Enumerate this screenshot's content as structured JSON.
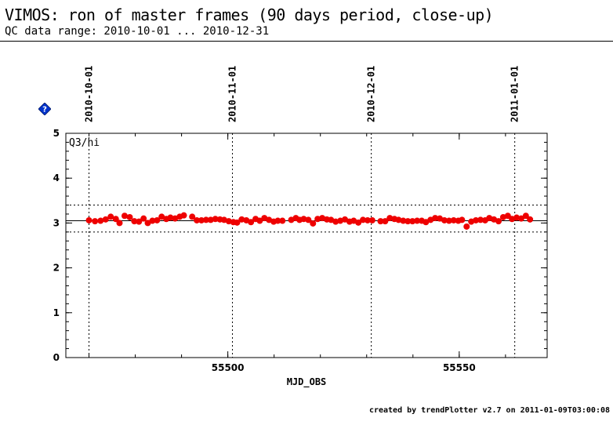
{
  "header": {
    "title": "VIMOS: ron of master frames (90 days period, close-up)",
    "subtitle": "QC data range: 2010-10-01 ... 2010-12-31"
  },
  "footer": "created by trendPlotter v2.7 on 2011-01-09T03:00:08",
  "icons": {
    "help": "help-diamond-icon"
  },
  "colors": {
    "points": "#ee0000",
    "help": "#0033cc"
  },
  "chart_data": {
    "type": "scatter",
    "xlabel": "MJD_OBS",
    "ylabel": "",
    "panel_label": "Q3/hi",
    "xlim": [
      55465,
      55569
    ],
    "ylim": [
      0,
      5
    ],
    "x_ticks": [
      55500,
      55550
    ],
    "y_ticks": [
      0,
      1,
      2,
      3,
      4,
      5
    ],
    "top_date_labels": [
      {
        "label": "2010-10-01",
        "x": 55470
      },
      {
        "label": "2010-11-01",
        "x": 55501
      },
      {
        "label": "2010-12-01",
        "x": 55531
      },
      {
        "label": "2011-01-01",
        "x": 55562
      }
    ],
    "reference_lines": {
      "median": 3.05,
      "lower": 2.8,
      "upper": 3.4
    },
    "series": [
      {
        "points": [
          [
            55470.0,
            3.06
          ],
          [
            55471.3,
            3.04
          ],
          [
            55472.5,
            3.05
          ],
          [
            55473.6,
            3.08
          ],
          [
            55474.7,
            3.14
          ],
          [
            55475.8,
            3.09
          ],
          [
            55476.6,
            3.0
          ],
          [
            55477.7,
            3.16
          ],
          [
            55478.8,
            3.13
          ],
          [
            55479.8,
            3.04
          ],
          [
            55480.8,
            3.03
          ],
          [
            55481.8,
            3.1
          ],
          [
            55482.7,
            3.0
          ],
          [
            55483.7,
            3.05
          ],
          [
            55484.7,
            3.06
          ],
          [
            55485.7,
            3.14
          ],
          [
            55486.7,
            3.09
          ],
          [
            55487.6,
            3.12
          ],
          [
            55488.6,
            3.1
          ],
          [
            55489.6,
            3.14
          ],
          [
            55490.5,
            3.17
          ],
          [
            55492.3,
            3.14
          ],
          [
            55493.3,
            3.06
          ],
          [
            55494.3,
            3.06
          ],
          [
            55495.3,
            3.07
          ],
          [
            55496.3,
            3.07
          ],
          [
            55497.3,
            3.09
          ],
          [
            55498.3,
            3.08
          ],
          [
            55499.2,
            3.07
          ],
          [
            55500.2,
            3.04
          ],
          [
            55501.2,
            3.02
          ],
          [
            55502.0,
            3.01
          ],
          [
            55503.0,
            3.08
          ],
          [
            55504.0,
            3.06
          ],
          [
            55505.0,
            3.02
          ],
          [
            55506.0,
            3.09
          ],
          [
            55506.9,
            3.05
          ],
          [
            55507.9,
            3.11
          ],
          [
            55508.9,
            3.07
          ],
          [
            55509.9,
            3.03
          ],
          [
            55510.8,
            3.05
          ],
          [
            55511.8,
            3.05
          ],
          [
            55513.7,
            3.07
          ],
          [
            55514.7,
            3.11
          ],
          [
            55515.5,
            3.07
          ],
          [
            55516.4,
            3.09
          ],
          [
            55517.4,
            3.07
          ],
          [
            55518.4,
            2.99
          ],
          [
            55519.4,
            3.09
          ],
          [
            55520.4,
            3.11
          ],
          [
            55521.4,
            3.08
          ],
          [
            55522.3,
            3.07
          ],
          [
            55523.3,
            3.03
          ],
          [
            55524.3,
            3.05
          ],
          [
            55525.3,
            3.08
          ],
          [
            55526.3,
            3.03
          ],
          [
            55527.2,
            3.05
          ],
          [
            55528.2,
            3.01
          ],
          [
            55529.2,
            3.07
          ],
          [
            55530.2,
            3.06
          ],
          [
            55531.2,
            3.06
          ],
          [
            55533.0,
            3.04
          ],
          [
            55534.0,
            3.04
          ],
          [
            55535.0,
            3.11
          ],
          [
            55536.0,
            3.09
          ],
          [
            55536.9,
            3.07
          ],
          [
            55537.9,
            3.05
          ],
          [
            55538.9,
            3.04
          ],
          [
            55539.9,
            3.04
          ],
          [
            55540.9,
            3.05
          ],
          [
            55541.9,
            3.05
          ],
          [
            55542.8,
            3.02
          ],
          [
            55543.8,
            3.07
          ],
          [
            55544.8,
            3.11
          ],
          [
            55545.8,
            3.1
          ],
          [
            55546.8,
            3.06
          ],
          [
            55547.8,
            3.05
          ],
          [
            55548.8,
            3.06
          ],
          [
            55549.8,
            3.05
          ],
          [
            55550.6,
            3.07
          ],
          [
            55551.6,
            2.92
          ],
          [
            55552.6,
            3.03
          ],
          [
            55553.6,
            3.06
          ],
          [
            55554.6,
            3.07
          ],
          [
            55555.6,
            3.06
          ],
          [
            55556.5,
            3.11
          ],
          [
            55557.5,
            3.08
          ],
          [
            55558.5,
            3.04
          ],
          [
            55559.5,
            3.13
          ],
          [
            55560.5,
            3.16
          ],
          [
            55561.4,
            3.09
          ],
          [
            55562.4,
            3.12
          ],
          [
            55563.4,
            3.1
          ],
          [
            55564.4,
            3.16
          ],
          [
            55565.3,
            3.08
          ]
        ]
      }
    ]
  }
}
